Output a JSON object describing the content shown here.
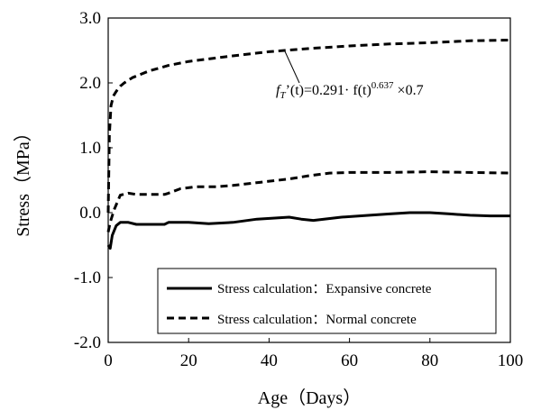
{
  "chart_data": {
    "type": "line",
    "title": "",
    "xlabel": "Age（Days）",
    "ylabel": "Stress（MPa）",
    "xlim": [
      0,
      100
    ],
    "ylim": [
      -2.0,
      3.0
    ],
    "x_ticks": [
      0,
      20,
      40,
      60,
      80,
      100
    ],
    "x_tick_labels": [
      "0",
      "20",
      "40",
      "60",
      "80",
      "100"
    ],
    "y_ticks": [
      -2.0,
      -1.0,
      0.0,
      1.0,
      2.0,
      3.0
    ],
    "y_tick_labels": [
      "-2.0",
      "-1.0",
      "0.0",
      "1.0",
      "2.0",
      "3.0"
    ],
    "grid": false,
    "legend": {
      "position": "bottom-right",
      "entries": [
        "Stress calculation：Expansive concrete",
        "Stress calculation：Normal concrete"
      ]
    },
    "annotation": {
      "base": "f",
      "sub": "T",
      "mid": "’(t)=0.291· f(t)",
      "sup": "0.637",
      "tail": " ×0.7"
    },
    "series": [
      {
        "name": "Stress calculation：Expansive concrete",
        "style": "solid",
        "color": "#000000",
        "points": [
          [
            0,
            -0.5
          ],
          [
            0.5,
            -0.55
          ],
          [
            1,
            -0.35
          ],
          [
            2,
            -0.2
          ],
          [
            3,
            -0.15
          ],
          [
            5,
            -0.15
          ],
          [
            7,
            -0.18
          ],
          [
            10,
            -0.18
          ],
          [
            14,
            -0.18
          ],
          [
            15,
            -0.15
          ],
          [
            20,
            -0.15
          ],
          [
            25,
            -0.17
          ],
          [
            31,
            -0.15
          ],
          [
            37,
            -0.1
          ],
          [
            45,
            -0.07
          ],
          [
            48,
            -0.1
          ],
          [
            51,
            -0.12
          ],
          [
            58,
            -0.07
          ],
          [
            65,
            -0.04
          ],
          [
            70,
            -0.02
          ],
          [
            75,
            0.0
          ],
          [
            80,
            0.0
          ],
          [
            85,
            -0.02
          ],
          [
            90,
            -0.04
          ],
          [
            95,
            -0.05
          ],
          [
            100,
            -0.05
          ]
        ]
      },
      {
        "name": "Stress calculation：Normal concrete",
        "style": "dashed",
        "color": "#000000",
        "points": [
          [
            0,
            -0.3
          ],
          [
            0.5,
            -0.15
          ],
          [
            1.5,
            0.05
          ],
          [
            3,
            0.27
          ],
          [
            5,
            0.3
          ],
          [
            7,
            0.28
          ],
          [
            10,
            0.28
          ],
          [
            14,
            0.28
          ],
          [
            15,
            0.3
          ],
          [
            18,
            0.37
          ],
          [
            22,
            0.4
          ],
          [
            27,
            0.4
          ],
          [
            31,
            0.42
          ],
          [
            38,
            0.47
          ],
          [
            45,
            0.52
          ],
          [
            50,
            0.57
          ],
          [
            55,
            0.61
          ],
          [
            60,
            0.62
          ],
          [
            70,
            0.62
          ],
          [
            80,
            0.63
          ],
          [
            90,
            0.62
          ],
          [
            100,
            0.61
          ]
        ]
      },
      {
        "name": "",
        "style": "dashed",
        "color": "#000000",
        "points": [
          [
            0,
            0.0
          ],
          [
            0.3,
            1.2
          ],
          [
            0.7,
            1.65
          ],
          [
            1.3,
            1.8
          ],
          [
            2,
            1.87
          ],
          [
            3,
            1.95
          ],
          [
            4,
            2.0
          ],
          [
            6,
            2.08
          ],
          [
            8,
            2.13
          ],
          [
            10,
            2.18
          ],
          [
            15,
            2.27
          ],
          [
            20,
            2.33
          ],
          [
            25,
            2.37
          ],
          [
            30,
            2.41
          ],
          [
            40,
            2.48
          ],
          [
            50,
            2.53
          ],
          [
            60,
            2.57
          ],
          [
            70,
            2.6
          ],
          [
            80,
            2.62
          ],
          [
            90,
            2.65
          ],
          [
            100,
            2.66
          ]
        ]
      }
    ]
  }
}
